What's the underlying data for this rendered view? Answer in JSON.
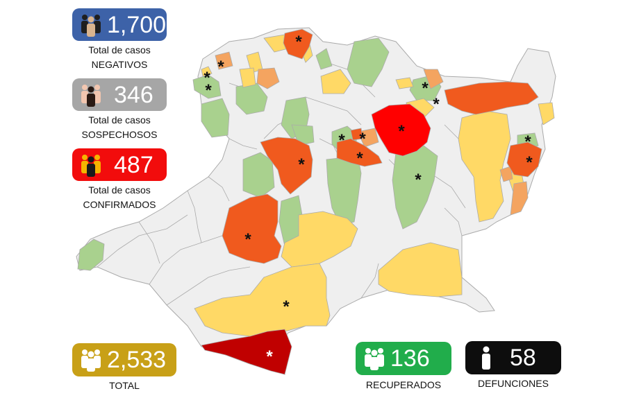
{
  "stats": {
    "negativos": {
      "value": "1,700",
      "label1": "Total de casos",
      "label2": "NEGATIVOS",
      "color": "#3d62a8",
      "icon": "group-people-icon"
    },
    "sospechosos": {
      "value": "346",
      "label1": "Total de casos",
      "label2": "SOSPECHOSOS",
      "color": "#a6a6a6",
      "icon": "group-people-icon"
    },
    "confirmados": {
      "value": "487",
      "label1": "Total de casos",
      "label2": "CONFIRMADOS",
      "color": "#f20c0c",
      "icon": "group-people-icon"
    },
    "total": {
      "value": "2,533",
      "label": "TOTAL",
      "color": "#c8a017",
      "icon": "group-people-icon"
    },
    "recuperados": {
      "value": "136",
      "label": "RECUPERADOS",
      "color": "#21ad4b",
      "icon": "group-people-icon"
    },
    "defunciones": {
      "value": "58",
      "label": "DEFUNCIONES",
      "color": "#0d0d0d",
      "icon": "single-person-icon"
    }
  },
  "map": {
    "marker_symbol": "*",
    "colors": {
      "none": "#efefef",
      "green": "#a9d18e",
      "yellow": "#ffd966",
      "light_orange": "#f4a460",
      "orange": "#f05a1e",
      "red": "#ff0000",
      "dark_red": "#c00000",
      "border": "#aaaaaa"
    }
  }
}
